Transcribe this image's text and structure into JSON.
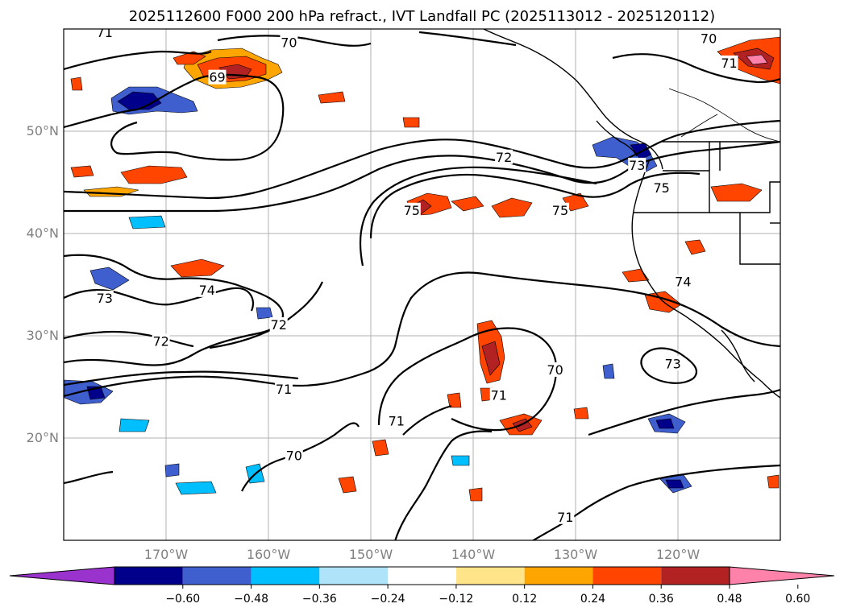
{
  "title": "2025112600 F000 200 hPa refract., IVT Landfall PC (2025113012 - 2025120112)",
  "map": {
    "lon_range": [
      -180,
      -110
    ],
    "lat_range": [
      10,
      60
    ],
    "lat_ticks": [
      {
        "value": 50,
        "label": "50°N"
      },
      {
        "value": 40,
        "label": "40°N"
      },
      {
        "value": 30,
        "label": "30°N"
      },
      {
        "value": 20,
        "label": "20°N"
      }
    ],
    "lon_ticks": [
      {
        "value": -170,
        "label": "170°W"
      },
      {
        "value": -160,
        "label": "160°W"
      },
      {
        "value": -150,
        "label": "150°W"
      },
      {
        "value": -140,
        "label": "140°W"
      },
      {
        "value": -130,
        "label": "130°W"
      },
      {
        "value": -120,
        "label": "120°W"
      }
    ],
    "contour_labels": [
      {
        "text": "71",
        "lon": -176,
        "lat": 59.7
      },
      {
        "text": "70",
        "lon": -158,
        "lat": 58.7
      },
      {
        "text": "69",
        "lon": -165,
        "lat": 55.3
      },
      {
        "text": "70",
        "lon": -117,
        "lat": 59.1
      },
      {
        "text": "71",
        "lon": -115,
        "lat": 56.7
      },
      {
        "text": "72",
        "lon": -137,
        "lat": 47.5
      },
      {
        "text": "73",
        "lon": -124,
        "lat": 46.7
      },
      {
        "text": "75",
        "lon": -121.6,
        "lat": 44.5
      },
      {
        "text": "75",
        "lon": -146,
        "lat": 42.3
      },
      {
        "text": "75",
        "lon": -131.5,
        "lat": 42.3
      },
      {
        "text": "74",
        "lon": -119.5,
        "lat": 35.3
      },
      {
        "text": "74",
        "lon": -166,
        "lat": 34.5
      },
      {
        "text": "73",
        "lon": -176,
        "lat": 33.7
      },
      {
        "text": "72",
        "lon": -159,
        "lat": 31.1
      },
      {
        "text": "72",
        "lon": -170.5,
        "lat": 29.5
      },
      {
        "text": "73",
        "lon": -120.5,
        "lat": 27.3
      },
      {
        "text": "70",
        "lon": -132,
        "lat": 26.7
      },
      {
        "text": "71",
        "lon": -158.5,
        "lat": 24.8
      },
      {
        "text": "71",
        "lon": -137.5,
        "lat": 24.2
      },
      {
        "text": "71",
        "lon": -147.5,
        "lat": 21.7
      },
      {
        "text": "70",
        "lon": -157.5,
        "lat": 18.3
      },
      {
        "text": "71",
        "lon": -131,
        "lat": 12.3
      }
    ]
  },
  "colorbar": {
    "ticks": [
      "−0.60",
      "−0.48",
      "−0.36",
      "−0.24",
      "−0.12",
      "0.12",
      "0.24",
      "0.36",
      "0.48",
      "0.60"
    ],
    "colors": [
      "#9a32cd",
      "#00008b",
      "#3f5fcf",
      "#00bfff",
      "#aee3fa",
      "#ffffff",
      "#ffe48a",
      "#ffa500",
      "#ff4500",
      "#b22222",
      "#ff82ab"
    ]
  }
}
